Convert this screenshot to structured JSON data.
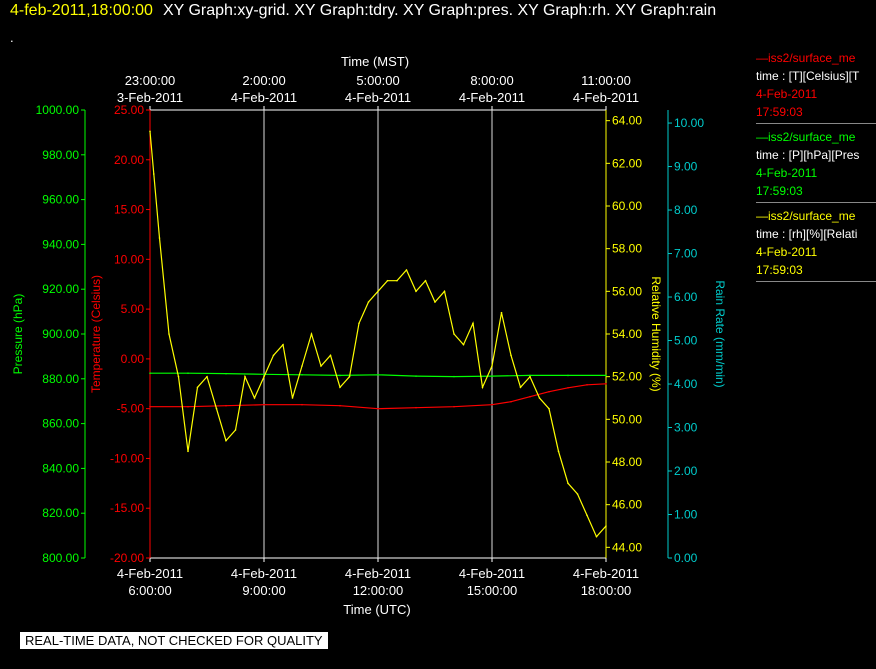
{
  "header": {
    "datetime": "4-feb-2011,18:00:00",
    "graphs": "XY Graph:xy-grid.  XY Graph:tdry.  XY Graph:pres.  XY Graph:rh.  XY Graph:rain",
    "dot": "."
  },
  "footer_note": "REAL-TIME DATA, NOT CHECKED FOR QUALITY",
  "legend": [
    {
      "name": "—iss2/surface_me",
      "line1": "time : [T][Celsius][T",
      "line2": "4-Feb-2011",
      "line3": "17:59:03",
      "color": "#ff0000"
    },
    {
      "name": "—iss2/surface_me",
      "line1": "time : [P][hPa][Pres",
      "line2": "4-Feb-2011",
      "line3": "17:59:03",
      "color": "#00ff00"
    },
    {
      "name": "—iss2/surface_me",
      "line1": "time : [rh][%][Relati",
      "line2": "4-Feb-2011",
      "line3": "17:59:03",
      "color": "#ffff00"
    }
  ],
  "chart_data": {
    "type": "line",
    "x_range_utc_hours": [
      6.0,
      18.0
    ],
    "grid": true,
    "top_axis": {
      "label": "Time (MST)",
      "ticks": [
        {
          "time": "23:00:00",
          "date": "3-Feb-2011",
          "utc_hour": 6
        },
        {
          "time": "2:00:00",
          "date": "4-Feb-2011",
          "utc_hour": 9
        },
        {
          "time": "5:00:00",
          "date": "4-Feb-2011",
          "utc_hour": 12
        },
        {
          "time": "8:00:00",
          "date": "4-Feb-2011",
          "utc_hour": 15
        },
        {
          "time": "11:00:00",
          "date": "4-Feb-2011",
          "utc_hour": 18
        }
      ]
    },
    "bottom_axis": {
      "label": "Time (UTC)",
      "ticks": [
        {
          "time": "6:00:00",
          "date": "4-Feb-2011",
          "utc_hour": 6
        },
        {
          "time": "9:00:00",
          "date": "4-Feb-2011",
          "utc_hour": 9
        },
        {
          "time": "12:00:00",
          "date": "4-Feb-2011",
          "utc_hour": 12
        },
        {
          "time": "15:00:00",
          "date": "4-Feb-2011",
          "utc_hour": 15
        },
        {
          "time": "18:00:00",
          "date": "4-Feb-2011",
          "utc_hour": 18
        }
      ]
    },
    "axes": {
      "pressure": {
        "label": "Pressure (hPa)",
        "range": [
          800,
          1000
        ],
        "ticks": [
          "1000.00",
          "980.00",
          "960.00",
          "940.00",
          "920.00",
          "900.00",
          "880.00",
          "860.00",
          "840.00",
          "820.00",
          "800.00"
        ],
        "color": "#00ff00"
      },
      "temperature": {
        "label": "Temperature (Celsius)",
        "range": [
          -20,
          25
        ],
        "ticks": [
          "25.00",
          "20.00",
          "15.00",
          "10.00",
          "5.00",
          "0.00",
          "-5.00",
          "-10.00",
          "-15.00",
          "-20.00"
        ],
        "color": "#ff0000"
      },
      "humidity": {
        "label": "Relative Humidity (%)",
        "range": [
          43.5,
          64.5
        ],
        "ticks": [
          "64.00",
          "62.00",
          "60.00",
          "58.00",
          "56.00",
          "54.00",
          "52.00",
          "50.00",
          "48.00",
          "46.00",
          "44.00"
        ],
        "color": "#ffff00"
      },
      "rain": {
        "label": "Rain Rate (mm/min)",
        "range": [
          0,
          10.3
        ],
        "ticks": [
          "10.00",
          "9.00",
          "8.00",
          "7.00",
          "6.00",
          "5.00",
          "4.00",
          "3.00",
          "2.00",
          "1.00",
          "0.00"
        ],
        "color": "#00cccc"
      }
    },
    "series": [
      {
        "axis": "temperature",
        "color": "#ff0000",
        "x": [
          6.0,
          7.0,
          8.0,
          9.0,
          10.0,
          11.0,
          12.0,
          13.0,
          14.0,
          15.0,
          15.5,
          16.0,
          16.5,
          17.0,
          17.5,
          18.0
        ],
        "y": [
          -4.8,
          -4.8,
          -4.7,
          -4.6,
          -4.6,
          -4.7,
          -5.0,
          -4.9,
          -4.8,
          -4.6,
          -4.3,
          -3.8,
          -3.3,
          -2.9,
          -2.6,
          -2.5
        ]
      },
      {
        "axis": "pressure",
        "color": "#00ff00",
        "x": [
          6.0,
          7.0,
          8.0,
          9.0,
          10.0,
          11.0,
          12.0,
          13.0,
          14.0,
          15.0,
          16.0,
          17.0,
          18.0
        ],
        "y": [
          882.5,
          882.5,
          882.3,
          882.0,
          881.8,
          881.5,
          881.8,
          881.2,
          881.0,
          881.2,
          881.5,
          881.5,
          881.5
        ]
      },
      {
        "axis": "humidity",
        "color": "#ffff00",
        "x": [
          6.0,
          6.1,
          6.25,
          6.5,
          6.75,
          7.0,
          7.25,
          7.5,
          7.75,
          8.0,
          8.25,
          8.5,
          8.75,
          9.0,
          9.25,
          9.5,
          9.75,
          10.0,
          10.25,
          10.5,
          10.75,
          11.0,
          11.25,
          11.5,
          11.75,
          12.0,
          12.25,
          12.5,
          12.75,
          13.0,
          13.25,
          13.5,
          13.75,
          14.0,
          14.25,
          14.5,
          14.75,
          15.0,
          15.25,
          15.5,
          15.75,
          16.0,
          16.25,
          16.5,
          16.75,
          17.0,
          17.25,
          17.5,
          17.75,
          18.0
        ],
        "y": [
          63.5,
          61.5,
          58.5,
          54.0,
          52.0,
          48.5,
          51.5,
          52.0,
          50.5,
          49.0,
          49.5,
          52.0,
          51.0,
          52.0,
          53.0,
          53.5,
          51.0,
          52.5,
          54.0,
          52.5,
          53.0,
          51.5,
          52.0,
          54.5,
          55.5,
          56.0,
          56.5,
          56.5,
          57.0,
          56.0,
          56.5,
          55.5,
          56.0,
          54.0,
          53.5,
          54.5,
          51.5,
          52.5,
          55.0,
          53.0,
          51.5,
          52.0,
          51.0,
          50.5,
          48.5,
          47.0,
          46.5,
          45.5,
          44.5,
          45.0
        ]
      }
    ]
  }
}
